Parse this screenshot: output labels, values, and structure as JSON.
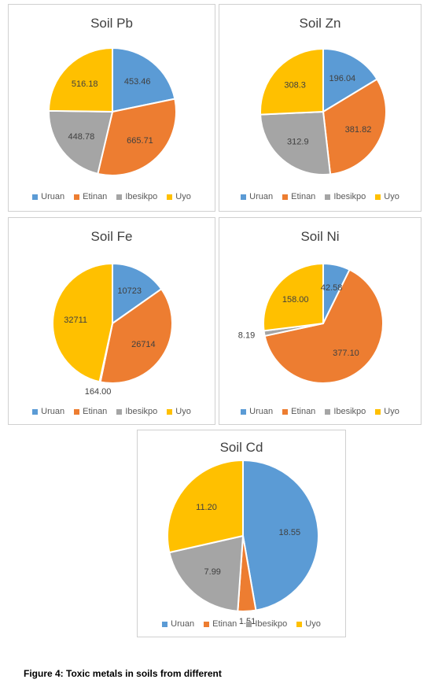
{
  "colors": {
    "Uruan": "#5b9bd5",
    "Etinan": "#ed7d31",
    "Ibesikpo": "#a5a5a5",
    "Uyo": "#ffc000"
  },
  "legend_labels": [
    "Uruan",
    "Etinan",
    "Ibesikpo",
    "Uyo"
  ],
  "caption": "Figure 4: Toxic metals in soils from different",
  "chart_data": [
    {
      "type": "pie",
      "title": "Soil Pb",
      "categories": [
        "Uruan",
        "Etinan",
        "Ibesikpo",
        "Uyo"
      ],
      "values": [
        453.46,
        665.71,
        448.78,
        516.18
      ],
      "value_labels": [
        "453.46",
        "665.71",
        "448.78",
        "516.18"
      ],
      "legend_position": "bottom"
    },
    {
      "type": "pie",
      "title": "Soil Zn",
      "categories": [
        "Uruan",
        "Etinan",
        "Ibesikpo",
        "Uyo"
      ],
      "values": [
        196.04,
        381.82,
        312.9,
        308.3
      ],
      "value_labels": [
        "196.04",
        "381.82",
        "312.9",
        "308.3"
      ],
      "legend_position": "bottom"
    },
    {
      "type": "pie",
      "title": "Soil Fe",
      "categories": [
        "Uruan",
        "Etinan",
        "Ibesikpo",
        "Uyo"
      ],
      "values": [
        10723,
        26714,
        164.0,
        32711
      ],
      "value_labels": [
        "10723",
        "26714",
        "164.00",
        "32711"
      ],
      "legend_position": "bottom"
    },
    {
      "type": "pie",
      "title": "Soil Ni",
      "categories": [
        "Uruan",
        "Etinan",
        "Ibesikpo",
        "Uyo"
      ],
      "values": [
        42.58,
        377.1,
        8.19,
        158.0
      ],
      "value_labels": [
        "42.58",
        "377.10",
        "8.19",
        "158.00"
      ],
      "legend_position": "bottom"
    },
    {
      "type": "pie",
      "title": "Soil Cd",
      "categories": [
        "Uruan",
        "Etinan",
        "Ibesikpo",
        "Uyo"
      ],
      "values": [
        18.55,
        1.51,
        7.99,
        11.2
      ],
      "value_labels": [
        "18.55",
        "1.51",
        "7.99",
        "11.20"
      ],
      "legend_position": "bottom"
    }
  ]
}
